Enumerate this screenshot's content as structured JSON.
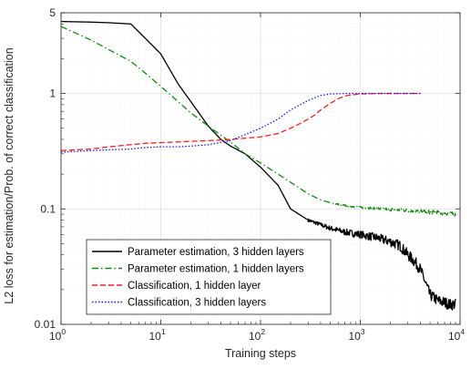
{
  "chart_data": {
    "type": "line",
    "xlabel": "Training steps",
    "ylabel": "L2 loss for estimation/Prob. of correct classification",
    "x_scale": "log",
    "y_scale": "log",
    "xlim": [
      1,
      10000
    ],
    "ylim": [
      0.01,
      5
    ],
    "grid": true,
    "legend_location": "lower-left",
    "x_ticks": [
      {
        "value": 1,
        "base": "10",
        "exp": "0"
      },
      {
        "value": 10,
        "base": "10",
        "exp": "1"
      },
      {
        "value": 100,
        "base": "10",
        "exp": "2"
      },
      {
        "value": 1000,
        "base": "10",
        "exp": "3"
      },
      {
        "value": 10000,
        "base": "10",
        "exp": "4"
      }
    ],
    "y_ticks": [
      {
        "value": 0.01,
        "label": "0.01"
      },
      {
        "value": 0.1,
        "label": "0.1"
      },
      {
        "value": 1,
        "label": "1"
      },
      {
        "value": 5,
        "label": "5"
      }
    ],
    "series": [
      {
        "name": "Parameter estimation, 3 hidden layers",
        "color": "#000000",
        "dash": "solid",
        "x": [
          1,
          2,
          3,
          5,
          7,
          10,
          15,
          20,
          30,
          40,
          50,
          70,
          100,
          150,
          200,
          300,
          400,
          500,
          700,
          1000,
          1500,
          2000,
          2500,
          3000,
          3500,
          4000,
          5000,
          6000,
          7000,
          8000,
          9000
        ],
        "y": [
          4.2,
          4.15,
          4.1,
          4.0,
          3.0,
          2.2,
          1.2,
          0.85,
          0.52,
          0.4,
          0.35,
          0.3,
          0.23,
          0.16,
          0.1,
          0.08,
          0.073,
          0.068,
          0.063,
          0.06,
          0.056,
          0.052,
          0.048,
          0.04,
          0.035,
          0.03,
          0.018,
          0.016,
          0.0155,
          0.0148,
          0.015
        ],
        "noise": 0.07,
        "noise_from": 300
      },
      {
        "name": "Parameter estimation, 1 hidden layers",
        "color": "#0a8a0a",
        "dash": "dashdot",
        "x": [
          1,
          2,
          3,
          5,
          7,
          10,
          20,
          30,
          50,
          70,
          100,
          150,
          200,
          300,
          400,
          500,
          700,
          1000,
          2000,
          3000,
          5000,
          9000
        ],
        "y": [
          3.8,
          2.9,
          2.4,
          1.9,
          1.5,
          1.15,
          0.68,
          0.52,
          0.38,
          0.3,
          0.25,
          0.2,
          0.17,
          0.135,
          0.12,
          0.113,
          0.107,
          0.103,
          0.099,
          0.097,
          0.094,
          0.09
        ],
        "noise": 0.025,
        "noise_from": 500
      },
      {
        "name": "Classification, 1 hidden layer",
        "color": "#ff1a1a",
        "dash": "dashed",
        "x": [
          1,
          2,
          3,
          5,
          7,
          10,
          15,
          20,
          30,
          50,
          70,
          100,
          150,
          200,
          250,
          300,
          350,
          400,
          500,
          600,
          700,
          800,
          1000,
          1500,
          2000,
          3000,
          4000
        ],
        "y": [
          0.32,
          0.33,
          0.345,
          0.36,
          0.37,
          0.375,
          0.38,
          0.385,
          0.39,
          0.4,
          0.41,
          0.42,
          0.45,
          0.5,
          0.55,
          0.6,
          0.65,
          0.72,
          0.82,
          0.9,
          0.95,
          0.97,
          0.99,
          1.0,
          1.0,
          1.0,
          1.0
        ],
        "noise": 0,
        "noise_from": 100000
      },
      {
        "name": "Classification, 3 hidden layers",
        "color": "#1515ee",
        "dash": "dotted",
        "x": [
          1,
          2,
          3,
          5,
          7,
          10,
          15,
          20,
          30,
          50,
          70,
          100,
          150,
          200,
          300,
          400,
          500,
          700,
          1000,
          2000,
          4000
        ],
        "y": [
          0.31,
          0.32,
          0.325,
          0.33,
          0.34,
          0.345,
          0.345,
          0.35,
          0.36,
          0.39,
          0.44,
          0.5,
          0.6,
          0.72,
          0.87,
          0.96,
          0.99,
          1.0,
          1.0,
          1.0,
          1.0
        ],
        "noise": 0,
        "noise_from": 100000
      }
    ]
  }
}
